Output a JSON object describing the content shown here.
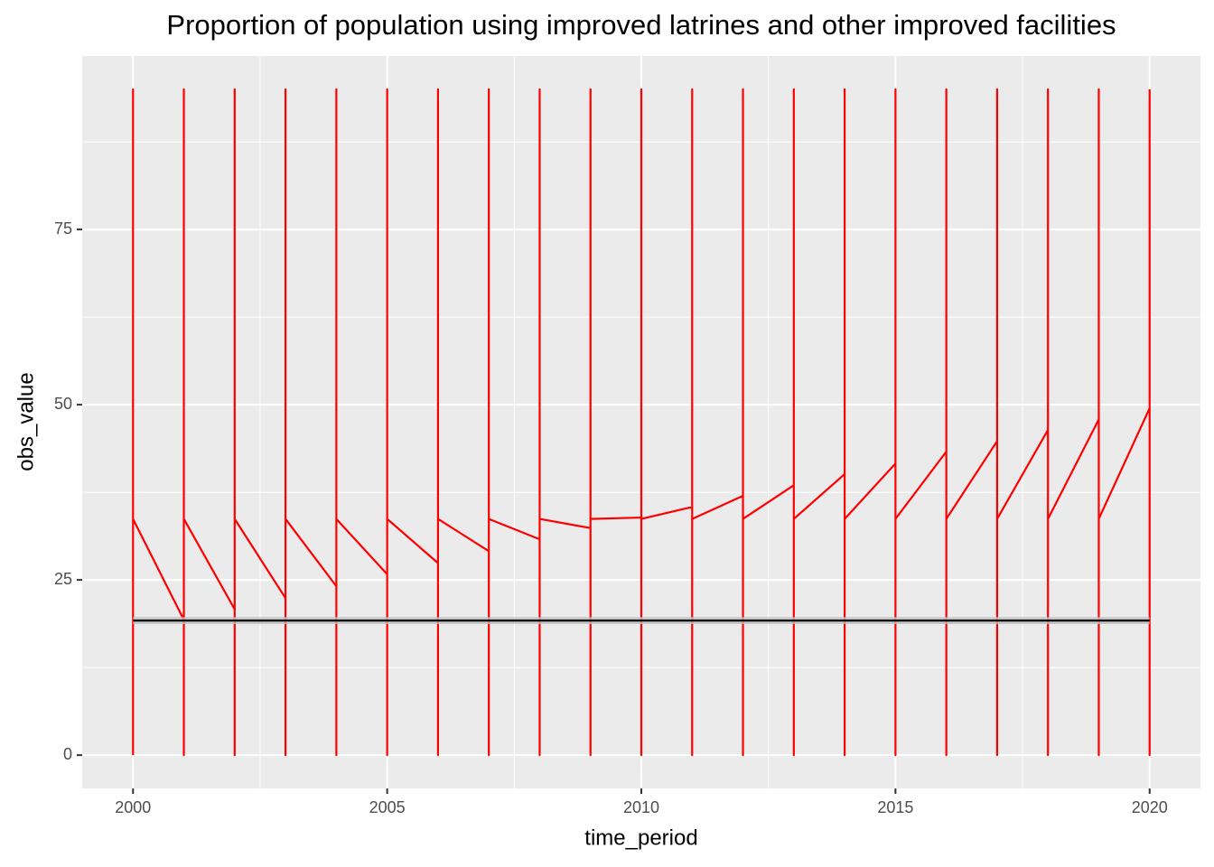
{
  "chart_data": {
    "type": "line",
    "title": "Proportion of population using improved latrines and other improved facilities",
    "x_label": "time_period",
    "y_label": "obs_value",
    "xlim": [
      1999,
      2021
    ],
    "ylim": [
      -4.75,
      99.75
    ],
    "xticks": [
      2000,
      2005,
      2010,
      2015,
      2020
    ],
    "yticks": [
      0,
      25,
      50,
      75
    ],
    "grid": true,
    "series": [
      {
        "color": "#ff0000",
        "x": [
          2000,
          2000,
          2000,
          2001,
          2001,
          2001,
          2001,
          2002,
          2002,
          2002,
          2002,
          2003,
          2003,
          2003,
          2003,
          2004,
          2004,
          2004,
          2004,
          2005,
          2005,
          2005,
          2005,
          2006,
          2006,
          2006,
          2006,
          2007,
          2007,
          2007,
          2007,
          2008,
          2008,
          2008,
          2008,
          2009,
          2009,
          2009,
          2009,
          2010,
          2010,
          2010,
          2010,
          2011,
          2011,
          2011,
          2011,
          2012,
          2012,
          2012,
          2012,
          2013,
          2013,
          2013,
          2013,
          2014,
          2014,
          2014,
          2014,
          2015,
          2015,
          2015,
          2015,
          2016,
          2016,
          2016,
          2016,
          2017,
          2017,
          2017,
          2017,
          2018,
          2018,
          2018,
          2018,
          2019,
          2019,
          2019,
          2019,
          2020,
          2020,
          2020
        ],
        "values": [
          0,
          95,
          33.7,
          19.3,
          0,
          95,
          33.7,
          20.8,
          0,
          95,
          33.7,
          22.4,
          0,
          95,
          33.7,
          24.1,
          0,
          95,
          33.7,
          25.8,
          0,
          95,
          33.7,
          27.4,
          0,
          95,
          33.7,
          29.1,
          0,
          95,
          33.7,
          30.8,
          0,
          95,
          33.7,
          32.4,
          0,
          95,
          33.7,
          33.9,
          0,
          95,
          33.7,
          35.4,
          0,
          95,
          33.7,
          37.0,
          0,
          95,
          33.7,
          38.5,
          0,
          95,
          33.7,
          40.1,
          0,
          95,
          33.7,
          41.6,
          0,
          95,
          33.7,
          43.3,
          0,
          95,
          33.7,
          44.8,
          0,
          95,
          33.7,
          46.4,
          0,
          95,
          33.7,
          47.9,
          0,
          95,
          33.7,
          49.5,
          0,
          95
        ]
      },
      {
        "color": "#000000",
        "x": [
          2000,
          2020
        ],
        "values": [
          19.2,
          19.2
        ],
        "lower": [
          18.7,
          18.7
        ],
        "upper": [
          19.7,
          19.7
        ],
        "band_color": "#bdbdbd"
      }
    ]
  }
}
